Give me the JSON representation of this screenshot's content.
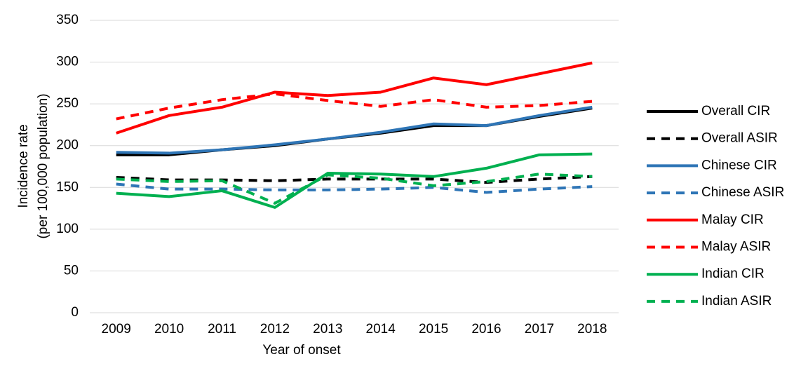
{
  "chart_data": {
    "type": "line",
    "x_label": "Year of onset",
    "y_label": [
      "Incidence rate",
      "(per 100,000 population)"
    ],
    "categories": [
      "2009",
      "2010",
      "2011",
      "2012",
      "2013",
      "2014",
      "2015",
      "2016",
      "2017",
      "2018"
    ],
    "ylim": [
      0,
      350
    ],
    "yticks": [
      0,
      50,
      100,
      150,
      200,
      250,
      300,
      350
    ],
    "grid": true,
    "legend": "right",
    "series": [
      {
        "name": "Overall CIR",
        "color": "#000000",
        "style": "solid",
        "values": [
          189,
          189,
          195,
          200,
          208,
          215,
          224,
          224,
          235,
          245
        ]
      },
      {
        "name": "Overall ASIR",
        "color": "#000000",
        "style": "dashed",
        "values": [
          162,
          159,
          159,
          158,
          160,
          160,
          160,
          156,
          160,
          163
        ]
      },
      {
        "name": "Chinese CIR",
        "color": "#2e75b6",
        "style": "solid",
        "values": [
          192,
          191,
          195,
          201,
          208,
          216,
          226,
          224,
          236,
          246
        ]
      },
      {
        "name": "Chinese ASIR",
        "color": "#2e75b6",
        "style": "dashed",
        "values": [
          154,
          148,
          148,
          147,
          147,
          148,
          150,
          144,
          148,
          151
        ]
      },
      {
        "name": "Malay CIR",
        "color": "#ff0000",
        "style": "solid",
        "values": [
          215,
          236,
          246,
          264,
          260,
          264,
          281,
          273,
          286,
          299
        ]
      },
      {
        "name": "Malay ASIR",
        "color": "#ff0000",
        "style": "dashed",
        "values": [
          232,
          245,
          255,
          262,
          254,
          247,
          255,
          246,
          248,
          253
        ]
      },
      {
        "name": "Indian CIR",
        "color": "#00b050",
        "style": "solid",
        "values": [
          143,
          139,
          146,
          126,
          167,
          166,
          163,
          173,
          189,
          190
        ]
      },
      {
        "name": "Indian ASIR",
        "color": "#00b050",
        "style": "dashed",
        "values": [
          160,
          157,
          158,
          131,
          165,
          161,
          152,
          157,
          166,
          163
        ]
      }
    ]
  }
}
